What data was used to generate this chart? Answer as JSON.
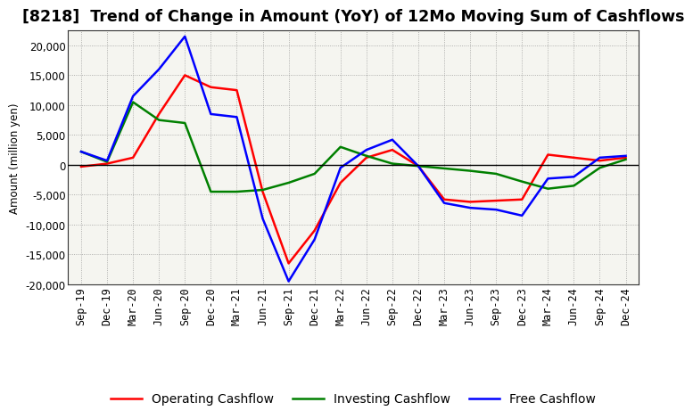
{
  "title": "[8218]  Trend of Change in Amount (YoY) of 12Mo Moving Sum of Cashflows",
  "ylabel": "Amount (million yen)",
  "xlabels": [
    "Sep-19",
    "Dec-19",
    "Mar-20",
    "Jun-20",
    "Sep-20",
    "Dec-20",
    "Mar-21",
    "Jun-21",
    "Sep-21",
    "Dec-21",
    "Mar-22",
    "Jun-22",
    "Sep-22",
    "Dec-22",
    "Mar-23",
    "Jun-23",
    "Sep-23",
    "Dec-23",
    "Mar-24",
    "Jun-24",
    "Sep-24",
    "Dec-24"
  ],
  "operating": [
    -300,
    200,
    1200,
    8500,
    15000,
    13000,
    12500,
    -4500,
    -16500,
    -11000,
    -3000,
    1200,
    2500,
    -200,
    -5800,
    -6200,
    -6000,
    -5800,
    1700,
    1200,
    700,
    1200
  ],
  "investing": [
    2200,
    500,
    10500,
    7500,
    7000,
    -4500,
    -4500,
    -4200,
    -3000,
    -1500,
    3000,
    1500,
    200,
    -200,
    -600,
    -1000,
    -1500,
    -2800,
    -4000,
    -3500,
    -500,
    900
  ],
  "free": [
    2200,
    700,
    11500,
    16000,
    21500,
    8500,
    8000,
    -9000,
    -19500,
    -12500,
    -500,
    2500,
    4200,
    -200,
    -6400,
    -7200,
    -7500,
    -8500,
    -2300,
    -2000,
    1200,
    1500
  ],
  "ylim": [
    -20000,
    22500
  ],
  "yticks": [
    -20000,
    -15000,
    -10000,
    -5000,
    0,
    5000,
    10000,
    15000,
    20000
  ],
  "operating_color": "#ff0000",
  "investing_color": "#008000",
  "free_color": "#0000ff",
  "bg_color": "#ffffff",
  "plot_bg_color": "#f5f5f0",
  "grid_color": "#888888",
  "title_fontsize": 12.5,
  "axis_fontsize": 8.5,
  "legend_fontsize": 10
}
